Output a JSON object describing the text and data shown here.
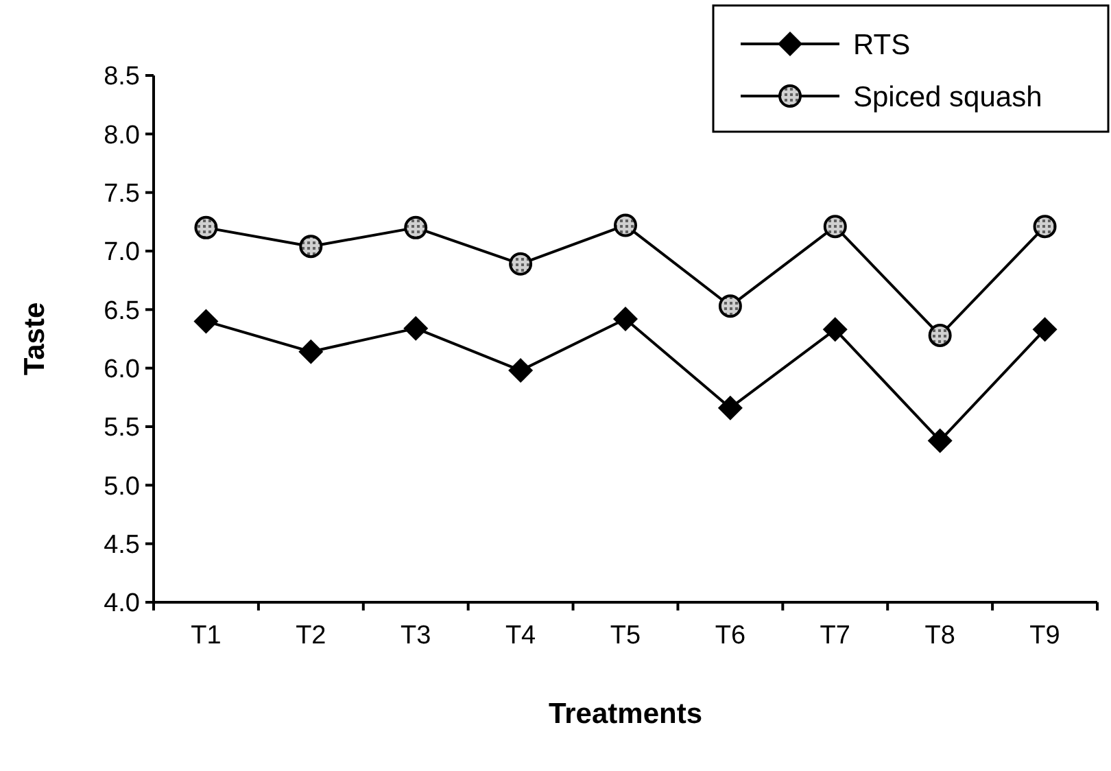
{
  "chart_data": {
    "type": "line",
    "xlabel": "Treatments",
    "ylabel": "Taste",
    "categories": [
      "T1",
      "T2",
      "T3",
      "T4",
      "T5",
      "T6",
      "T7",
      "T8",
      "T9"
    ],
    "series": [
      {
        "name": "RTS",
        "color": "#000000",
        "marker": "diamond",
        "values": [
          6.4,
          6.14,
          6.34,
          5.98,
          6.42,
          5.66,
          6.33,
          5.38,
          6.33
        ]
      },
      {
        "name": "Spiced squash",
        "color": "#000000",
        "marker": "circle",
        "values": [
          7.2,
          7.04,
          7.2,
          6.89,
          7.22,
          6.53,
          7.21,
          6.28,
          7.21
        ]
      }
    ],
    "ylim": [
      4.0,
      8.5
    ],
    "yticks": [
      {
        "value": 4,
        "label": "4.0"
      },
      {
        "value": 4.5,
        "label": "4.5"
      },
      {
        "value": 5,
        "label": "5.0"
      },
      {
        "value": 5.5,
        "label": "5.5"
      },
      {
        "value": 6,
        "label": "6.0"
      },
      {
        "value": 6.5,
        "label": "6.5"
      },
      {
        "value": 7,
        "label": "7.0"
      },
      {
        "value": 7.5,
        "label": "7.5"
      },
      {
        "value": 8,
        "label": "8.0"
      },
      {
        "value": 8.5,
        "label": "8.5"
      }
    ],
    "grid": false,
    "legend": "top right"
  }
}
